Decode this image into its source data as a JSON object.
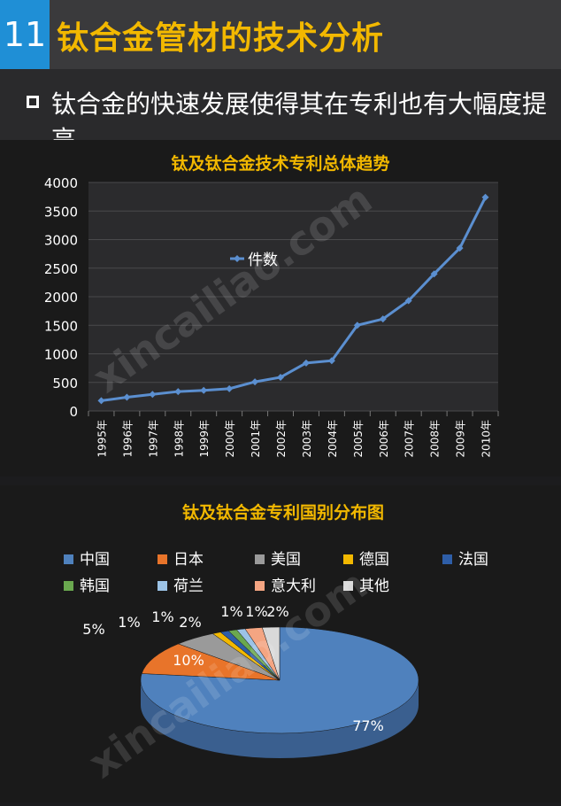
{
  "header": {
    "number": "11",
    "title": "钛合金管材的技术分析",
    "subtitle": "钛合金的快速发展使得其在专利也有大幅度提高"
  },
  "watermark": "xincailiao.com",
  "chart_data": [
    {
      "type": "line",
      "title": "钛及钛合金技术专利总体趋势",
      "x": [
        "1995年",
        "1996年",
        "1997年",
        "1998年",
        "1999年",
        "2000年",
        "2001年",
        "2002年",
        "2003年",
        "2004年",
        "2005年",
        "2006年",
        "2007年",
        "2008年",
        "2009年",
        "2010年"
      ],
      "series": [
        {
          "name": "件数",
          "values": [
            180,
            240,
            290,
            340,
            360,
            390,
            510,
            590,
            840,
            880,
            1500,
            1610,
            1930,
            2400,
            2850,
            3740
          ]
        }
      ],
      "ylim": [
        0,
        4000
      ],
      "yticks": [
        0,
        500,
        1000,
        1500,
        2000,
        2500,
        3000,
        3500,
        4000
      ],
      "grid": true,
      "legend": "inside-top-center",
      "color": "#5b8fd0"
    },
    {
      "type": "pie",
      "title": "钛及钛合金专利国别分布图",
      "categories": [
        "中国",
        "日本",
        "美国",
        "德国",
        "法国",
        "韩国",
        "荷兰",
        "意大利",
        "其他"
      ],
      "values": [
        77,
        10,
        5,
        1,
        1,
        1,
        1,
        2,
        2
      ],
      "labels": [
        "77%",
        "10%",
        "5%",
        "1%",
        "1%",
        "1%",
        "1%",
        "2%",
        "2%"
      ],
      "colors": [
        "#4f81bd",
        "#e8742a",
        "#9a9a9a",
        "#f2b800",
        "#2e5ea8",
        "#6aa84f",
        "#9cc3e6",
        "#f4a582",
        "#d9d9d9"
      ],
      "legend": "top"
    }
  ]
}
